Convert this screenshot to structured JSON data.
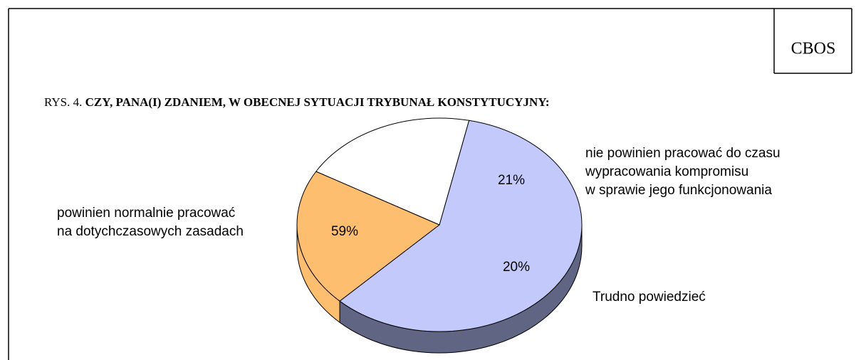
{
  "chart_data": {
    "type": "pie",
    "source": "CBOS",
    "title_prefix": "RYS. 4.",
    "title": "CZY, PANA(I) ZDANIEM, W OBECNEJ SYTUACJI TRYBUNAŁ KONSTYTUCYJNY:",
    "categories": [
      [
        "powinien normalnie pracować",
        "na dotychczasowych zasadach"
      ],
      [
        "nie powinien pracować do czasu",
        "wypracowania kompromisu",
        "w sprawie jego funkcjonowania"
      ],
      [
        "Trudno powiedzieć"
      ]
    ],
    "values": [
      59,
      21,
      20
    ],
    "value_labels": [
      "59%",
      "21%",
      "20%"
    ],
    "colors": [
      "#c3cafb",
      "#fdbf6f",
      "#ffffff"
    ]
  }
}
